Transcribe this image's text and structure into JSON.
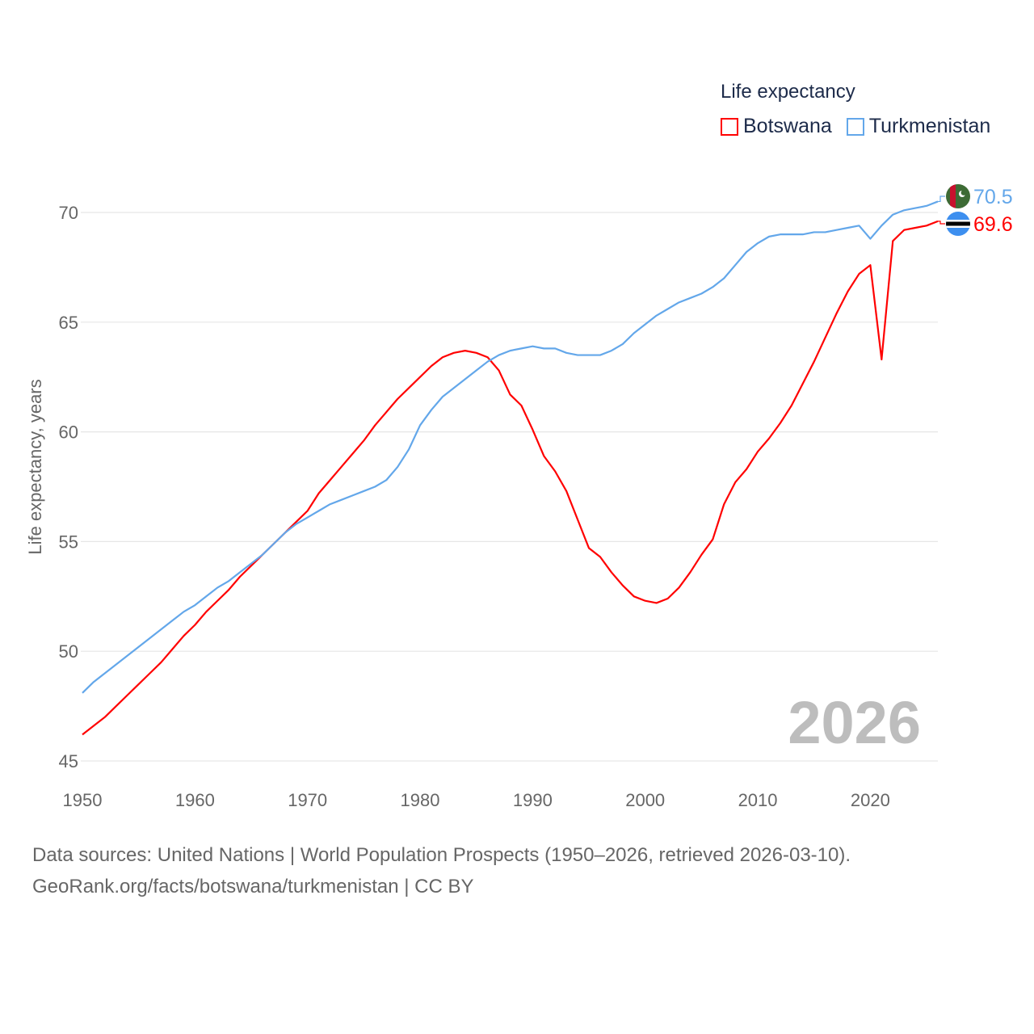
{
  "chart_data": {
    "type": "line",
    "title": "Life expectancy",
    "xlabel": "",
    "ylabel": "Life expectancy, years",
    "xlim": [
      1950,
      2026
    ],
    "ylim": [
      45,
      71
    ],
    "grid": true,
    "legend_placement": "top-right",
    "x_ticks": [
      "1950",
      "1960",
      "1970",
      "1980",
      "1990",
      "2000",
      "2010",
      "2020"
    ],
    "y_ticks": [
      "45",
      "50",
      "55",
      "60",
      "65",
      "70"
    ],
    "year_label": "2026",
    "x": [
      1950,
      1951,
      1952,
      1953,
      1954,
      1955,
      1956,
      1957,
      1958,
      1959,
      1960,
      1961,
      1962,
      1963,
      1964,
      1965,
      1966,
      1967,
      1968,
      1969,
      1970,
      1971,
      1972,
      1973,
      1974,
      1975,
      1976,
      1977,
      1978,
      1979,
      1980,
      1981,
      1982,
      1983,
      1984,
      1985,
      1986,
      1987,
      1988,
      1989,
      1990,
      1991,
      1992,
      1993,
      1994,
      1995,
      1996,
      1997,
      1998,
      1999,
      2000,
      2001,
      2002,
      2003,
      2004,
      2005,
      2006,
      2007,
      2008,
      2009,
      2010,
      2011,
      2012,
      2013,
      2014,
      2015,
      2016,
      2017,
      2018,
      2019,
      2020,
      2021,
      2022,
      2023,
      2024,
      2025,
      2026
    ],
    "series": [
      {
        "name": "Botswana",
        "color": "#ff0000",
        "end_label": "69.6",
        "values": [
          46.2,
          46.6,
          47.0,
          47.5,
          48.0,
          48.5,
          49.0,
          49.5,
          50.1,
          50.7,
          51.2,
          51.8,
          52.3,
          52.8,
          53.4,
          53.9,
          54.4,
          54.9,
          55.4,
          55.9,
          56.4,
          57.2,
          57.8,
          58.4,
          59.0,
          59.6,
          60.3,
          60.9,
          61.5,
          62.0,
          62.5,
          63.0,
          63.4,
          63.6,
          63.7,
          63.6,
          63.4,
          62.8,
          61.7,
          61.2,
          60.1,
          58.9,
          58.2,
          57.3,
          56.0,
          54.7,
          54.3,
          53.6,
          53.0,
          52.5,
          52.3,
          52.2,
          52.4,
          52.9,
          53.6,
          54.4,
          55.1,
          56.7,
          57.7,
          58.3,
          59.1,
          59.7,
          60.4,
          61.2,
          62.2,
          63.2,
          64.3,
          65.4,
          66.4,
          67.2,
          67.6,
          63.3,
          68.7,
          69.2,
          69.3,
          69.4,
          69.6
        ]
      },
      {
        "name": "Turkmenistan",
        "color": "#63a7ea",
        "end_label": "70.5",
        "values": [
          48.1,
          48.6,
          49.0,
          49.4,
          49.8,
          50.2,
          50.6,
          51.0,
          51.4,
          51.8,
          52.1,
          52.5,
          52.9,
          53.2,
          53.6,
          54.0,
          54.4,
          54.9,
          55.4,
          55.8,
          56.1,
          56.4,
          56.7,
          56.9,
          57.1,
          57.3,
          57.5,
          57.8,
          58.4,
          59.2,
          60.3,
          61.0,
          61.6,
          62.0,
          62.4,
          62.8,
          63.2,
          63.5,
          63.7,
          63.8,
          63.9,
          63.8,
          63.8,
          63.6,
          63.5,
          63.5,
          63.5,
          63.7,
          64.0,
          64.5,
          64.9,
          65.3,
          65.6,
          65.9,
          66.1,
          66.3,
          66.6,
          67.0,
          67.6,
          68.2,
          68.6,
          68.9,
          69.0,
          69.0,
          69.0,
          69.1,
          69.1,
          69.2,
          69.3,
          69.4,
          68.8,
          69.4,
          69.9,
          70.1,
          70.2,
          70.3,
          70.5
        ]
      }
    ]
  },
  "sources": {
    "line1": "Data sources: United Nations | World Population Prospects (1950–2026, retrieved 2026-03-10).",
    "line2": "GeoRank.org/facts/botswana/turkmenistan | CC BY"
  }
}
